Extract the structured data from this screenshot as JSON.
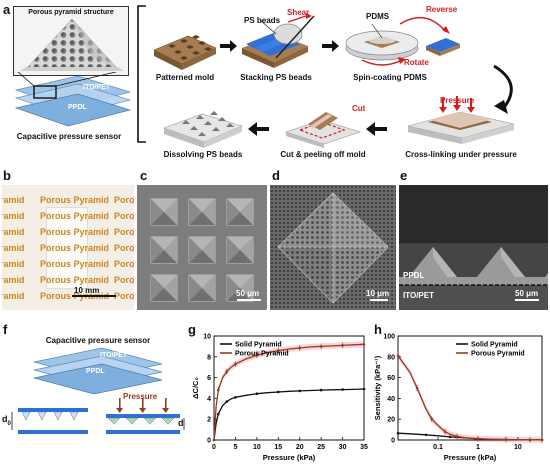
{
  "panels": {
    "a": "a",
    "b": "b",
    "c": "c",
    "d": "d",
    "e": "e",
    "f": "f",
    "g": "g",
    "h": "h"
  },
  "panel_a": {
    "porous_title": "Porous pyramid structure",
    "ito_label": "ITO/PET",
    "ppdl_label": "PPDL",
    "sensor_caption": "Capacitive pressure sensor",
    "steps": [
      "Patterned mold",
      "Stacking PS beads",
      "Spin-coating PDMS",
      "Cross-linking under pressure",
      "Cut & peeling off mold",
      "Dissolving PS beads"
    ],
    "ps_beads": "PS beads",
    "shear": "Shear",
    "pdms": "PDMS",
    "reverse": "Reverse",
    "rotate": "Rotate",
    "pressure": "Pressure",
    "cut": "Cut"
  },
  "panel_b": {
    "row_texts": [
      "ramid",
      "Porous Pyramid",
      "Poro"
    ],
    "scale": "10 mm"
  },
  "panel_c": {
    "scale": "50 μm"
  },
  "panel_d": {
    "scale": "10 μm"
  },
  "panel_e": {
    "ppdl": "PPDL",
    "ito": "ITO/PET",
    "scale": "50 μm"
  },
  "panel_f": {
    "title": "Capacitive pressure sensor",
    "ito": "ITO/PET",
    "ppdl": "PPDL",
    "pressure": "Pressure",
    "d0": "d",
    "d0_sub": "0",
    "d": "d"
  },
  "colors": {
    "solid": "#111111",
    "porous": "#9b3a1a",
    "pink_band": "#f7c9d3",
    "label_orange": "#d2841c",
    "red": "#d21e1e"
  },
  "chart_data": [
    {
      "type": "line",
      "panel": "g",
      "xlabel": "Pressure (kPa)",
      "ylabel": "ΔC/C₀",
      "xlim": [
        0,
        35
      ],
      "ylim": [
        0,
        10
      ],
      "xticks": [
        0,
        5,
        10,
        15,
        20,
        25,
        30,
        35
      ],
      "yticks": [
        0,
        2,
        4,
        6,
        8,
        10
      ],
      "legend_position": "top-left",
      "series": [
        {
          "name": "Solid Pyramid",
          "color": "#111111",
          "x": [
            0,
            0.5,
            1,
            2,
            3,
            4,
            5,
            7.5,
            10,
            12.5,
            15,
            17.5,
            20,
            22.5,
            25,
            27.5,
            30,
            32.5,
            35
          ],
          "y": [
            0,
            1.6,
            2.5,
            3.3,
            3.7,
            3.95,
            4.1,
            4.3,
            4.45,
            4.55,
            4.62,
            4.68,
            4.72,
            4.76,
            4.8,
            4.83,
            4.85,
            4.87,
            4.9
          ]
        },
        {
          "name": "Porous Pyramid",
          "color": "#9b3a1a",
          "x": [
            0,
            0.5,
            1,
            2,
            3,
            4,
            5,
            7.5,
            10,
            12.5,
            15,
            17.5,
            20,
            22.5,
            25,
            27.5,
            30,
            32.5,
            35
          ],
          "y": [
            0,
            3.2,
            4.8,
            6.0,
            6.6,
            7.0,
            7.3,
            7.8,
            8.15,
            8.4,
            8.6,
            8.75,
            8.85,
            8.95,
            9.0,
            9.05,
            9.1,
            9.15,
            9.2
          ]
        }
      ]
    },
    {
      "type": "line",
      "panel": "h",
      "xlabel": "Pressure (kPa)",
      "ylabel": "Sensitivity (kPa⁻¹)",
      "xscale": "log",
      "xlim": [
        0.01,
        40
      ],
      "ylim": [
        0,
        100
      ],
      "xticks": [
        {
          "v": 0.1,
          "label": "0.1"
        },
        {
          "v": 1,
          "label": "1"
        },
        {
          "v": 10,
          "label": "10"
        }
      ],
      "yticks": [
        0,
        20,
        40,
        60,
        80,
        100
      ],
      "legend_position": "top-right",
      "series": [
        {
          "name": "Solid Pyramid",
          "color": "#111111",
          "x": [
            0.01,
            0.02,
            0.05,
            0.1,
            0.2,
            0.5,
            1,
            2,
            5,
            10,
            20,
            40
          ],
          "y": [
            6.5,
            6,
            5,
            4,
            3,
            2,
            1.2,
            0.7,
            0.4,
            0.2,
            0.1,
            0.1
          ]
        },
        {
          "name": "Porous Pyramid",
          "color": "#9b3a1a",
          "x": [
            0.01,
            0.02,
            0.03,
            0.05,
            0.07,
            0.1,
            0.15,
            0.2,
            0.3,
            0.5,
            1,
            2,
            5,
            10,
            20,
            40
          ],
          "y": [
            81,
            65,
            50,
            30,
            20,
            14,
            8,
            5.5,
            3.5,
            2,
            1.2,
            0.8,
            0.5,
            0.3,
            0.2,
            0.1
          ]
        }
      ]
    }
  ]
}
